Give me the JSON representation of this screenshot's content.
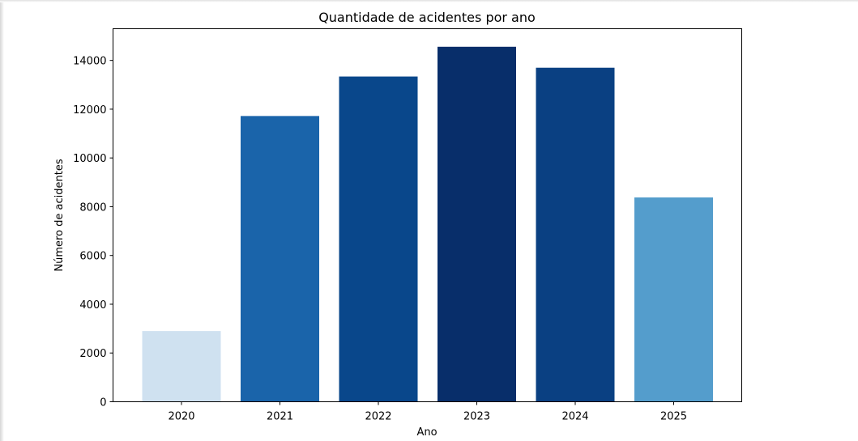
{
  "chart_data": {
    "type": "bar",
    "title": "Quantidade de acidentes por ano",
    "xlabel": "Ano",
    "ylabel": "Número de acidentes",
    "categories": [
      "2020",
      "2021",
      "2022",
      "2023",
      "2024",
      "2025"
    ],
    "values": [
      2900,
      11720,
      13340,
      14560,
      13700,
      8380
    ],
    "colors": [
      "#cfe1f0",
      "#1a64aa",
      "#09478b",
      "#082e6a",
      "#0a4082",
      "#549dcc"
    ],
    "ylim": [
      0,
      15300
    ],
    "yticks": [
      0,
      2000,
      4000,
      6000,
      8000,
      10000,
      12000,
      14000
    ],
    "ytick_labels": [
      "0",
      "2000",
      "4000",
      "6000",
      "8000",
      "10000",
      "12000",
      "14000"
    ],
    "grid": false,
    "legend": "none"
  }
}
